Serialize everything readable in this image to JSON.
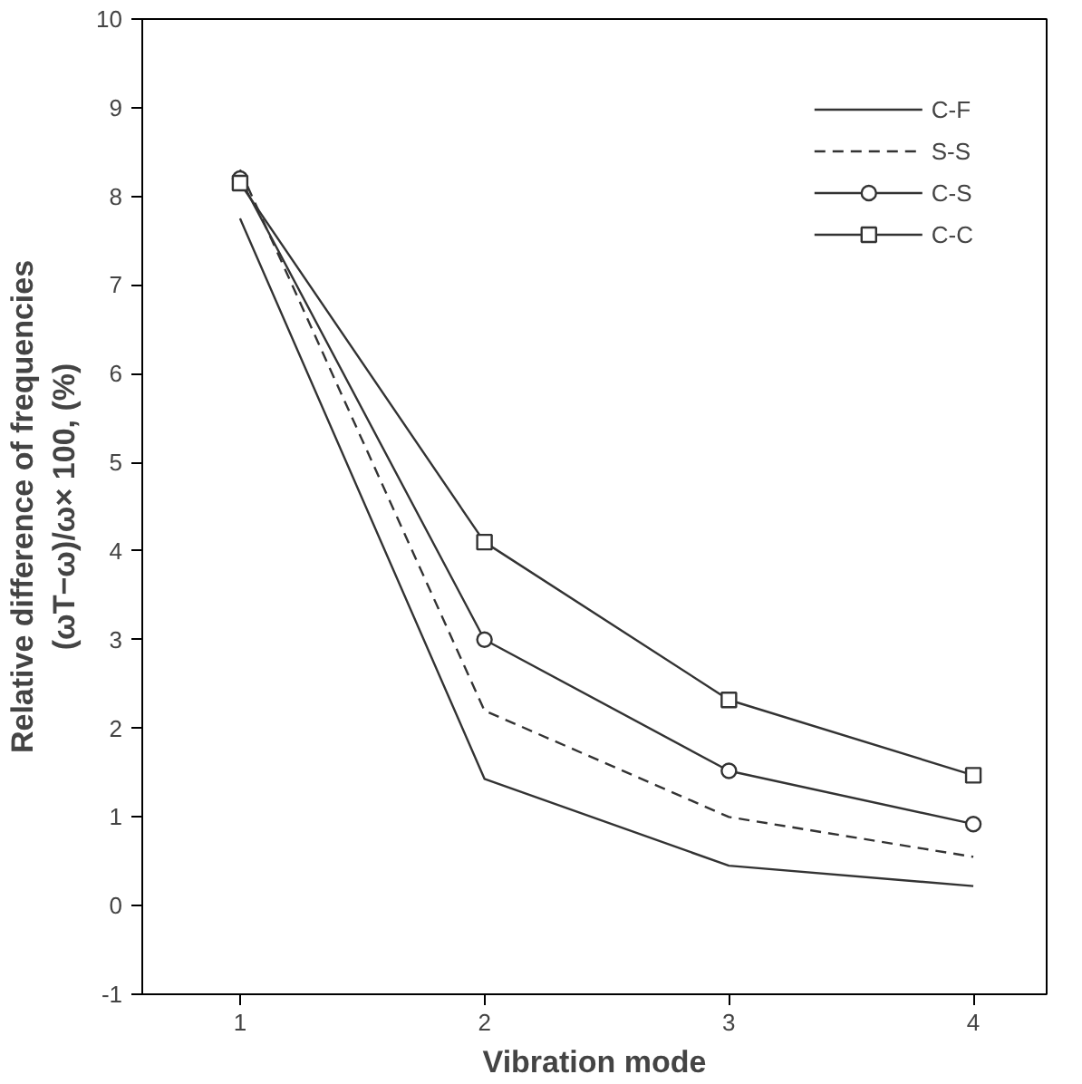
{
  "chart_data": {
    "type": "line",
    "xlabel": "Vibration mode",
    "ylabel": "Relative difference of frequencies\n(ωT−ω)/ω× 100, (%)",
    "x": [
      1,
      2,
      3,
      4
    ],
    "xlim": [
      0.6,
      4.3
    ],
    "xticks": [
      1,
      2,
      3,
      4
    ],
    "ylim": [
      -1,
      10
    ],
    "yticks": [
      -1,
      0,
      1,
      2,
      3,
      4,
      5,
      6,
      7,
      8,
      9,
      10
    ],
    "grid": false,
    "legend": "top right",
    "series": [
      {
        "name": "C-F",
        "color": "#333333",
        "values": [
          7.75,
          1.43,
          0.45,
          0.22
        ],
        "line_style": "solid",
        "marker": "none"
      },
      {
        "name": "S-S",
        "color": "#333333",
        "values": [
          8.3,
          2.2,
          1.0,
          0.55
        ],
        "line_style": "dashed",
        "marker": "none"
      },
      {
        "name": "C-S",
        "color": "#333333",
        "values": [
          8.2,
          3.0,
          1.52,
          0.92
        ],
        "line_style": "solid",
        "marker": "circle"
      },
      {
        "name": "C-C",
        "color": "#333333",
        "values": [
          8.15,
          4.1,
          2.32,
          1.47
        ],
        "line_style": "solid",
        "marker": "square"
      }
    ]
  }
}
